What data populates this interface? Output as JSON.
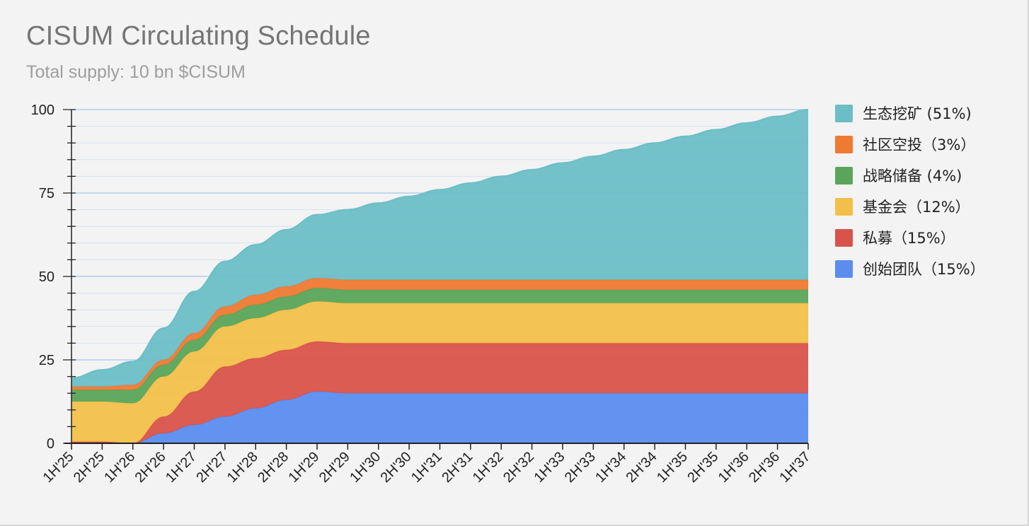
{
  "chart_data": {
    "type": "area",
    "stacked": true,
    "title": "CISUM Circulating Schedule",
    "subtitle": "Total supply: 10 bn $CISUM",
    "xlabel": "",
    "ylabel": "",
    "ylim": [
      0,
      100
    ],
    "yticks": [
      "0",
      "25",
      "50",
      "75",
      "100"
    ],
    "grid": true,
    "legend_position": "right",
    "categories": [
      "1H'25",
      "2H'25",
      "1H'26",
      "2H'26",
      "1H'27",
      "2H'27",
      "1H'28",
      "2H'28",
      "1H'29",
      "2H'29",
      "1H'30",
      "2H'30",
      "1H'31",
      "2H'31",
      "1H'32",
      "2H'32",
      "1H'33",
      "2H'33",
      "1H'34",
      "2H'34",
      "1H'35",
      "2H'35",
      "1H'36",
      "2H'36",
      "1H'37"
    ],
    "series": [
      {
        "name": "创始团队（15%）",
        "color": "#5b8def",
        "values": [
          0,
          0,
          0,
          3,
          5.5,
          8,
          10.5,
          13,
          15.5,
          15,
          15,
          15,
          15,
          15,
          15,
          15,
          15,
          15,
          15,
          15,
          15,
          15,
          15,
          15,
          15
        ]
      },
      {
        "name": "私募（15%）",
        "color": "#d9534a",
        "values": [
          0.5,
          0.5,
          0,
          5,
          10,
          15,
          15,
          15,
          15,
          15,
          15,
          15,
          15,
          15,
          15,
          15,
          15,
          15,
          15,
          15,
          15,
          15,
          15,
          15,
          15
        ]
      },
      {
        "name": "基金会（12%）",
        "color": "#f2c04a",
        "values": [
          12,
          12,
          12,
          12,
          12,
          12,
          12,
          12,
          12,
          12,
          12,
          12,
          12,
          12,
          12,
          12,
          12,
          12,
          12,
          12,
          12,
          12,
          12,
          12,
          12
        ]
      },
      {
        "name": "战略储备 (4%)",
        "color": "#5aa55a",
        "values": [
          3.5,
          3.5,
          4,
          3.5,
          3.5,
          3.5,
          4,
          4,
          4,
          4,
          4,
          4,
          4,
          4,
          4,
          4,
          4,
          4,
          4,
          4,
          4,
          4,
          4,
          4,
          4
        ]
      },
      {
        "name": "社区空投（3%）",
        "color": "#ee7a33",
        "values": [
          1,
          1,
          1.5,
          1.5,
          2,
          2.5,
          3,
          3,
          3,
          3,
          3,
          3,
          3,
          3,
          3,
          3,
          3,
          3,
          3,
          3,
          3,
          3,
          3,
          3,
          3
        ]
      },
      {
        "name": "生态挖矿 (51%)",
        "color": "#6cbec6",
        "values": [
          2.5,
          5,
          7,
          9.5,
          12.5,
          13.5,
          15,
          17,
          19,
          21,
          23,
          25,
          27,
          29,
          31,
          33,
          35,
          37,
          39,
          41,
          43,
          45,
          47,
          49,
          51
        ]
      }
    ]
  }
}
